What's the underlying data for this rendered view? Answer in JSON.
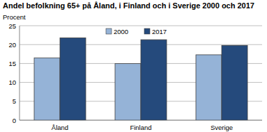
{
  "chart_data": {
    "type": "bar",
    "title": "Andel befolkning 65+ på Åland, i Finland och i Sverige 2000 och 2017",
    "y_label": "Procent",
    "categories": [
      "Åland",
      "Finland",
      "Sverige"
    ],
    "series": [
      {
        "name": "2000",
        "color": "#95b3d7",
        "values": [
          16.5,
          15.0,
          17.3
        ]
      },
      {
        "name": "2017",
        "color": "#254a7c",
        "values": [
          21.8,
          21.3,
          19.8
        ]
      }
    ],
    "ylim": [
      0,
      25
    ],
    "yticks": [
      0,
      5,
      10,
      15,
      20,
      25
    ],
    "grid": true,
    "legend": "top"
  }
}
